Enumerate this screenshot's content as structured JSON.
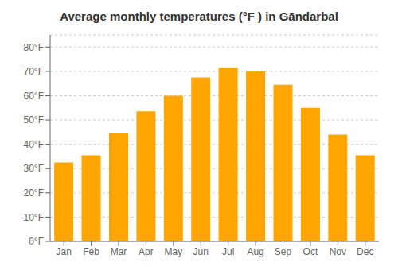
{
  "chart_data": {
    "type": "bar",
    "title": "Average monthly temperatures (°F ) in Gāndarbal",
    "categories": [
      "Jan",
      "Feb",
      "Mar",
      "Apr",
      "May",
      "Jun",
      "Jul",
      "Aug",
      "Sep",
      "Oct",
      "Nov",
      "Dec"
    ],
    "values": [
      32.5,
      35.5,
      44.5,
      53.5,
      60,
      67.5,
      71.5,
      70,
      64.5,
      55,
      44,
      35.5
    ],
    "color": "#FFA500",
    "ylim": [
      0,
      85
    ],
    "yticks": [
      {
        "value": 0,
        "label": "0°F"
      },
      {
        "value": 10,
        "label": "10°F"
      },
      {
        "value": 20,
        "label": "20°F"
      },
      {
        "value": 30,
        "label": "30°F"
      },
      {
        "value": 40,
        "label": "40°F"
      },
      {
        "value": 50,
        "label": "50°F"
      },
      {
        "value": 60,
        "label": "60°F"
      },
      {
        "value": 70,
        "label": "70°F"
      },
      {
        "value": 80,
        "label": "80°F"
      }
    ],
    "grid": true
  }
}
